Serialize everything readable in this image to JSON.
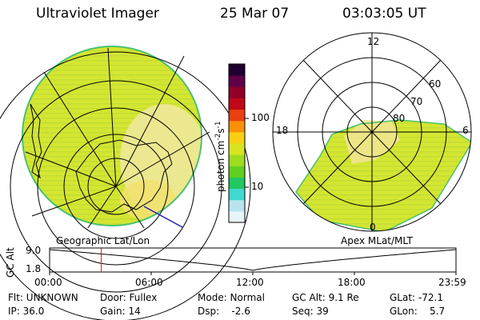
{
  "header": {
    "title": "Ultraviolet Imager",
    "date": "25 Mar 07",
    "time": "03:03:05 UT"
  },
  "colorbar": {
    "unit_prefix": "photon cm",
    "unit_exp1": "-2",
    "unit_mid": "s",
    "unit_exp2": "-1",
    "tick_labels": [
      "100",
      "10"
    ],
    "colors": [
      "#e8f4f8",
      "#b8e4f0",
      "#40d8d0",
      "#20c860",
      "#60d020",
      "#a0dc20",
      "#d8e420",
      "#f8d010",
      "#f89008",
      "#e84010",
      "#c00818",
      "#900028",
      "#600048",
      "#200030"
    ]
  },
  "geo_panel": {
    "label": "Geographic Lat/Lon"
  },
  "apex_panel": {
    "label": "Apex MLat/MLT",
    "mlt_labels": [
      "12",
      "18",
      "6",
      "0"
    ],
    "mlat_labels": [
      "60",
      "70",
      "80"
    ]
  },
  "altitude_plot": {
    "ylabel": "GC Alt",
    "y_ticks": [
      "9.0",
      "1.8"
    ],
    "x_ticks": [
      "00:00",
      "06:00",
      "12:00",
      "18:00",
      "23:59"
    ],
    "marker_time_hours": 3.05
  },
  "info": {
    "row1": {
      "flt": "Flt: UNKNOWN",
      "door": "Door: Fullex",
      "mode": "Mode: Normal",
      "gcalt": "GC Alt: 9.1 Re",
      "glat": "GLat: -72.1"
    },
    "row2": {
      "ip": "IP: 36.0",
      "gain": "Gain: 14",
      "dsp": "Dsp:    -2.6",
      "seq": "Seq: 39",
      "glon": "GLon:    5.7"
    }
  },
  "colors": {
    "image_base": "#d8e830",
    "image_dim": "#c0dc30",
    "image_bright": "#f4e890",
    "image_edge": "#40c060",
    "marker": "#d02020"
  }
}
